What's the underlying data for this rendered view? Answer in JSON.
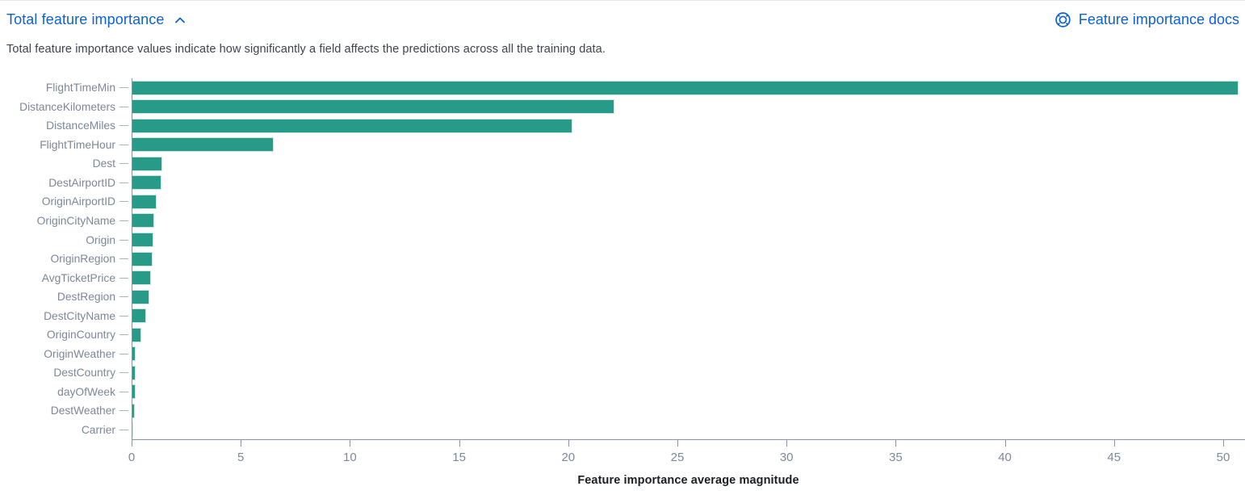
{
  "header": {
    "title": "Total feature importance",
    "collapse_icon": "chevron-up-icon",
    "docs_link_label": "Feature importance docs",
    "docs_icon": "documentation-life-ring-icon",
    "link_color": "#0d62d0"
  },
  "description": "Total feature importance values indicate how significantly a field affects the predictions across all the training data.",
  "chart_data": {
    "type": "bar",
    "orientation": "horizontal",
    "title": "Total feature importance",
    "categories": [
      "FlightTimeMin",
      "DistanceKilometers",
      "DistanceMiles",
      "FlightTimeHour",
      "Dest",
      "DestAirportID",
      "OriginAirportID",
      "OriginCityName",
      "Origin",
      "OriginRegion",
      "AvgTicketPrice",
      "DestRegion",
      "DestCityName",
      "OriginCountry",
      "OriginWeather",
      "DestCountry",
      "dayOfWeek",
      "DestWeather",
      "Carrier"
    ],
    "values": [
      50.7,
      22.1,
      20.2,
      6.5,
      1.4,
      1.35,
      1.15,
      1.05,
      1.0,
      0.95,
      0.9,
      0.8,
      0.65,
      0.45,
      0.2,
      0.18,
      0.18,
      0.15,
      0.06
    ],
    "xlabel": "Feature importance average magnitude",
    "ylabel": "",
    "xlim": [
      0,
      51
    ],
    "xticks": [
      0,
      5,
      10,
      15,
      20,
      25,
      30,
      35,
      40,
      45,
      50
    ],
    "bar_color": "#279b88",
    "grid": false,
    "legend": "none"
  }
}
